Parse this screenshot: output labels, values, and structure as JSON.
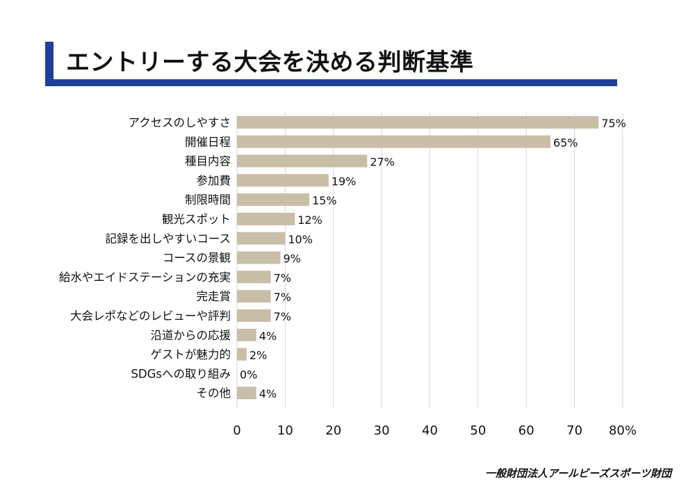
{
  "header": {
    "title": "エントリーする大会を決める判断基準"
  },
  "footer": {
    "source": "一般財団法人アールビーズスポーツ財団"
  },
  "colors": {
    "title_accent": "#1f3f9a",
    "bar_fill": "#c8bea7",
    "grid_line": "#d7d7d7"
  },
  "chart_data": {
    "type": "bar",
    "orientation": "horizontal",
    "categories": [
      "アクセスのしやすさ",
      "開催日程",
      "種目内容",
      "参加費",
      "制限時間",
      "観光スポット",
      "記録を出しやすいコース",
      "コースの景観",
      "給水やエイドステーションの充実",
      "完走賞",
      "大会レポなどのレビューや評判",
      "沿道からの応援",
      "ゲストが魅力的",
      "SDGsへの取り組み",
      "その他"
    ],
    "values": [
      75,
      65,
      27,
      19,
      15,
      12,
      10,
      9,
      7,
      7,
      7,
      4,
      2,
      0,
      4
    ],
    "value_labels": [
      "75%",
      "65%",
      "27%",
      "19%",
      "15%",
      "12%",
      "10%",
      "9%",
      "7%",
      "7%",
      "7%",
      "4%",
      "2%",
      "0%",
      "4%"
    ],
    "xlim": [
      0,
      80
    ],
    "xticks": [
      0,
      10,
      20,
      30,
      40,
      50,
      60,
      70,
      80
    ],
    "xtick_labels": [
      "0",
      "10",
      "20",
      "30",
      "40",
      "50",
      "60",
      "70",
      "80%"
    ],
    "grid": true,
    "legend": "none"
  }
}
